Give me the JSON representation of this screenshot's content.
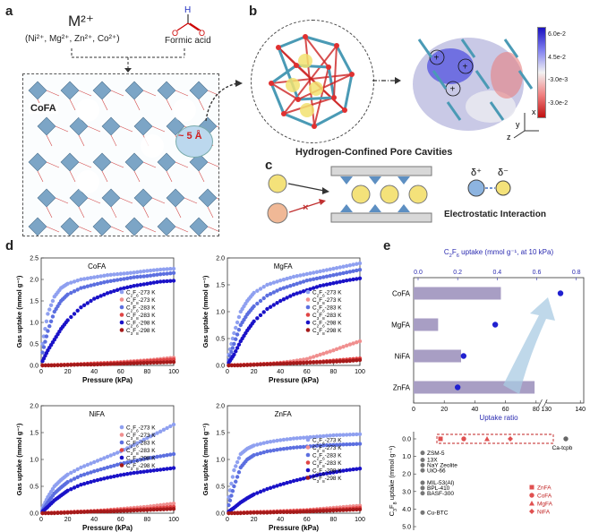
{
  "panels": {
    "a": "a",
    "b": "b",
    "c": "c",
    "d": "d",
    "e": "e"
  },
  "panel_a": {
    "metal_formula": "M²⁺",
    "metal_list": "(Ni²⁺, Mg²⁺, Zn²⁺, Co²⁺)",
    "acid_label": "Formic acid",
    "framework_label": "CoFA",
    "pore_size": "~ 5 Å"
  },
  "panel_b": {
    "title": "Hydrogen-Confined Pore Cavities",
    "colorbar_ticks": [
      "6.0e-2",
      "4.5e-2",
      "",
      "-3.0e-3",
      "-3.0e-2"
    ],
    "axes": {
      "x": "x",
      "y": "y",
      "z": "z"
    }
  },
  "panel_c": {
    "caption": "Electrostatic Interaction",
    "delta_plus": "δ⁺",
    "delta_minus": "δ⁻"
  },
  "isotherm_charts": [
    {
      "name": "CoFA",
      "legend": [
        "C2F6-273 K",
        "C3F8-273 K",
        "C2F6-283 K",
        "C3F8-283 K",
        "C2F6-298 K",
        "C3F8-298 K"
      ]
    },
    {
      "name": "MgFA",
      "legend": [
        "C2F6-273 K",
        "C3F8-273 K",
        "C2F6-283 K",
        "C3F8-283 K",
        "C2F6-298 K",
        "C3F8-298 K"
      ]
    },
    {
      "name": "NiFA",
      "legend": [
        "C2F6-273 K",
        "C3F8-273 K",
        "C2F6-283 K",
        "C3F8-283 K",
        "C2F6-298 K",
        "C3F8-298 K"
      ]
    },
    {
      "name": "ZnFA",
      "legend": [
        "C2F6-273 K",
        "C3F8-273 K",
        "C2F6-283 K",
        "C3F8-283 K",
        "C2F6-298 K",
        "C3F8-298 K"
      ]
    }
  ],
  "chart_data": [
    {
      "type": "scatter",
      "title": "CoFA",
      "xlabel": "Pressure (kPa)",
      "ylabel": "Gas uptake (mmol g⁻¹)",
      "xlim": [
        0,
        100
      ],
      "ylim": [
        0,
        2.5
      ],
      "xticks": [
        0,
        20,
        40,
        60,
        80,
        100
      ],
      "yticks": [
        0.0,
        0.5,
        1.0,
        1.5,
        2.0,
        2.5
      ],
      "series": [
        {
          "name": "C2F6-273 K",
          "color": "#8fa0f0",
          "x": [
            1,
            5,
            10,
            15,
            20,
            30,
            40,
            50,
            60,
            70,
            80,
            90,
            100
          ],
          "y": [
            0.5,
            1.2,
            1.6,
            1.8,
            1.9,
            2.0,
            2.05,
            2.1,
            2.13,
            2.16,
            2.2,
            2.23,
            2.25
          ]
        },
        {
          "name": "C3F8-273 K",
          "color": "#f08f8f",
          "x": [
            1,
            10,
            20,
            30,
            40,
            50,
            60,
            70,
            80,
            90,
            100
          ],
          "y": [
            0.0,
            0.01,
            0.02,
            0.03,
            0.05,
            0.06,
            0.08,
            0.1,
            0.12,
            0.15,
            0.18
          ]
        },
        {
          "name": "C2F6-283 K",
          "color": "#5c6fe0",
          "x": [
            1,
            5,
            10,
            15,
            20,
            30,
            40,
            50,
            60,
            70,
            80,
            90,
            100
          ],
          "y": [
            0.3,
            0.8,
            1.25,
            1.5,
            1.65,
            1.8,
            1.88,
            1.95,
            2.0,
            2.05,
            2.08,
            2.12,
            2.15
          ]
        },
        {
          "name": "C3F8-283 K",
          "color": "#e04545",
          "x": [
            1,
            10,
            20,
            30,
            40,
            50,
            60,
            70,
            80,
            90,
            100
          ],
          "y": [
            0.0,
            0.01,
            0.02,
            0.03,
            0.04,
            0.05,
            0.06,
            0.08,
            0.1,
            0.12,
            0.14
          ]
        },
        {
          "name": "C2F6-298 K",
          "color": "#1a12c8",
          "x": [
            1,
            5,
            10,
            15,
            20,
            30,
            40,
            50,
            60,
            70,
            80,
            90,
            100
          ],
          "y": [
            0.1,
            0.35,
            0.6,
            0.85,
            1.05,
            1.35,
            1.55,
            1.68,
            1.78,
            1.85,
            1.9,
            1.95,
            1.97
          ]
        },
        {
          "name": "C3F8-298 K",
          "color": "#a51a1a",
          "x": [
            1,
            10,
            20,
            30,
            40,
            50,
            60,
            70,
            80,
            90,
            100
          ],
          "y": [
            0.0,
            0.0,
            0.01,
            0.02,
            0.02,
            0.03,
            0.04,
            0.05,
            0.06,
            0.07,
            0.08
          ]
        }
      ]
    },
    {
      "type": "scatter",
      "title": "MgFA",
      "xlabel": "Pressure (kPa)",
      "ylabel": "Gas uptake (mmol g⁻¹)",
      "xlim": [
        0,
        100
      ],
      "ylim": [
        0,
        2.0
      ],
      "xticks": [
        0,
        20,
        40,
        60,
        80,
        100
      ],
      "yticks": [
        0.0,
        0.5,
        1.0,
        1.5,
        2.0
      ],
      "series": [
        {
          "name": "C2F6-273 K",
          "color": "#8fa0f0",
          "x": [
            1,
            5,
            10,
            15,
            20,
            30,
            40,
            50,
            60,
            70,
            80,
            90,
            100
          ],
          "y": [
            0.2,
            0.6,
            1.0,
            1.2,
            1.35,
            1.5,
            1.58,
            1.65,
            1.7,
            1.75,
            1.8,
            1.85,
            1.9
          ]
        },
        {
          "name": "C3F8-273 K",
          "color": "#f08f8f",
          "x": [
            1,
            10,
            20,
            30,
            40,
            50,
            60,
            70,
            80,
            90,
            100
          ],
          "y": [
            0.0,
            0.01,
            0.02,
            0.03,
            0.05,
            0.08,
            0.12,
            0.2,
            0.28,
            0.37,
            0.45
          ]
        },
        {
          "name": "C2F6-283 K",
          "color": "#5c6fe0",
          "x": [
            1,
            5,
            10,
            15,
            20,
            30,
            40,
            50,
            60,
            70,
            80,
            90,
            100
          ],
          "y": [
            0.1,
            0.4,
            0.75,
            0.95,
            1.1,
            1.3,
            1.42,
            1.5,
            1.58,
            1.63,
            1.68,
            1.73,
            1.78
          ]
        },
        {
          "name": "C3F8-283 K",
          "color": "#e04545",
          "x": [
            1,
            10,
            20,
            30,
            40,
            50,
            60,
            70,
            80,
            90,
            100
          ],
          "y": [
            0.0,
            0.01,
            0.02,
            0.03,
            0.04,
            0.05,
            0.06,
            0.07,
            0.09,
            0.11,
            0.13
          ]
        },
        {
          "name": "C2F6-298 K",
          "color": "#1a12c8",
          "x": [
            1,
            5,
            10,
            15,
            20,
            30,
            40,
            50,
            60,
            70,
            80,
            90,
            100
          ],
          "y": [
            0.05,
            0.2,
            0.45,
            0.65,
            0.82,
            1.05,
            1.2,
            1.32,
            1.4,
            1.48,
            1.53,
            1.58,
            1.62
          ]
        },
        {
          "name": "C3F8-298 K",
          "color": "#a51a1a",
          "x": [
            1,
            10,
            20,
            30,
            40,
            50,
            60,
            70,
            80,
            90,
            100
          ],
          "y": [
            0.0,
            0.0,
            0.01,
            0.02,
            0.03,
            0.04,
            0.05,
            0.06,
            0.07,
            0.08,
            0.1
          ]
        }
      ]
    },
    {
      "type": "scatter",
      "title": "NiFA",
      "xlabel": "Pressure (kPa)",
      "ylabel": "Gas uptake (mmol g⁻¹)",
      "xlim": [
        0,
        100
      ],
      "ylim": [
        0,
        2.0
      ],
      "xticks": [
        0,
        20,
        40,
        60,
        80,
        100
      ],
      "yticks": [
        0.0,
        0.5,
        1.0,
        1.5,
        2.0
      ],
      "series": [
        {
          "name": "C2F6-273 K",
          "color": "#8fa0f0",
          "x": [
            1,
            5,
            10,
            15,
            20,
            30,
            40,
            50,
            60,
            70,
            80,
            90,
            100
          ],
          "y": [
            0.1,
            0.3,
            0.5,
            0.62,
            0.72,
            0.85,
            0.95,
            1.05,
            1.15,
            1.27,
            1.4,
            1.52,
            1.65
          ]
        },
        {
          "name": "C3F8-273 K",
          "color": "#f08f8f",
          "x": [
            1,
            10,
            20,
            30,
            40,
            50,
            60,
            70,
            80,
            90,
            100
          ],
          "y": [
            0.0,
            0.01,
            0.02,
            0.03,
            0.04,
            0.06,
            0.08,
            0.1,
            0.12,
            0.15,
            0.18
          ]
        },
        {
          "name": "C2F6-283 K",
          "color": "#5c6fe0",
          "x": [
            1,
            5,
            10,
            15,
            20,
            30,
            40,
            50,
            60,
            70,
            80,
            90,
            100
          ],
          "y": [
            0.05,
            0.2,
            0.37,
            0.48,
            0.58,
            0.7,
            0.78,
            0.85,
            0.92,
            0.97,
            1.02,
            1.06,
            1.1
          ]
        },
        {
          "name": "C3F8-283 K",
          "color": "#e04545",
          "x": [
            1,
            10,
            20,
            30,
            40,
            50,
            60,
            70,
            80,
            90,
            100
          ],
          "y": [
            0.0,
            0.01,
            0.02,
            0.03,
            0.04,
            0.05,
            0.06,
            0.07,
            0.08,
            0.1,
            0.12
          ]
        },
        {
          "name": "C2F6-298 K",
          "color": "#1a12c8",
          "x": [
            1,
            5,
            10,
            15,
            20,
            30,
            40,
            50,
            60,
            70,
            80,
            90,
            100
          ],
          "y": [
            0.03,
            0.12,
            0.24,
            0.33,
            0.42,
            0.53,
            0.6,
            0.66,
            0.71,
            0.75,
            0.78,
            0.81,
            0.84
          ]
        },
        {
          "name": "C3F8-298 K",
          "color": "#a51a1a",
          "x": [
            1,
            10,
            20,
            30,
            40,
            50,
            60,
            70,
            80,
            90,
            100
          ],
          "y": [
            0.0,
            0.0,
            0.01,
            0.02,
            0.03,
            0.03,
            0.04,
            0.05,
            0.06,
            0.07,
            0.08
          ]
        }
      ]
    },
    {
      "type": "scatter",
      "title": "ZnFA",
      "xlabel": "Pressure (kPa)",
      "ylabel": "Gas uptake (mmol g⁻¹)",
      "xlim": [
        0,
        100
      ],
      "ylim": [
        0,
        2.0
      ],
      "xticks": [
        0,
        20,
        40,
        60,
        80,
        100
      ],
      "yticks": [
        0.0,
        0.5,
        1.0,
        1.5,
        2.0
      ],
      "series": [
        {
          "name": "C2F6-273 K",
          "color": "#8fa0f0",
          "x": [
            1,
            5,
            10,
            15,
            20,
            30,
            40,
            50,
            60,
            70,
            80,
            90,
            100
          ],
          "y": [
            0.3,
            0.8,
            1.1,
            1.2,
            1.26,
            1.32,
            1.36,
            1.39,
            1.41,
            1.43,
            1.45,
            1.46,
            1.47
          ]
        },
        {
          "name": "C3F8-273 K",
          "color": "#f08f8f",
          "x": [
            1,
            10,
            20,
            30,
            40,
            50,
            60,
            70,
            80,
            90,
            100
          ],
          "y": [
            0.0,
            0.01,
            0.02,
            0.03,
            0.04,
            0.05,
            0.06,
            0.08,
            0.1,
            0.12,
            0.14
          ]
        },
        {
          "name": "C2F6-283 K",
          "color": "#5c6fe0",
          "x": [
            1,
            5,
            10,
            15,
            20,
            30,
            40,
            50,
            60,
            70,
            80,
            90,
            100
          ],
          "y": [
            0.15,
            0.5,
            0.85,
            1.0,
            1.08,
            1.15,
            1.19,
            1.22,
            1.24,
            1.26,
            1.27,
            1.28,
            1.29
          ]
        },
        {
          "name": "C3F8-283 K",
          "color": "#e04545",
          "x": [
            1,
            10,
            20,
            30,
            40,
            50,
            60,
            70,
            80,
            90,
            100
          ],
          "y": [
            0.0,
            0.01,
            0.02,
            0.02,
            0.03,
            0.04,
            0.05,
            0.06,
            0.07,
            0.08,
            0.1
          ]
        },
        {
          "name": "C2F6-298 K",
          "color": "#1a12c8",
          "x": [
            1,
            5,
            10,
            15,
            20,
            30,
            40,
            50,
            60,
            70,
            80,
            90,
            100
          ],
          "y": [
            0.03,
            0.1,
            0.2,
            0.28,
            0.35,
            0.45,
            0.53,
            0.6,
            0.66,
            0.72,
            0.76,
            0.8,
            0.83
          ]
        },
        {
          "name": "C3F8-298 K",
          "color": "#a51a1a",
          "x": [
            1,
            10,
            20,
            30,
            40,
            50,
            60,
            70,
            80,
            90,
            100
          ],
          "y": [
            0.0,
            0.0,
            0.01,
            0.01,
            0.02,
            0.02,
            0.03,
            0.04,
            0.05,
            0.06,
            0.07
          ]
        }
      ]
    },
    {
      "type": "bar",
      "orientation": "horizontal",
      "title": "",
      "xlabel": "Uptake ratio",
      "top_axis_label": "C2F6 uptake (mmol g⁻¹, at 10 kPa)",
      "categories": [
        "CoFA",
        "MgFA",
        "NiFA",
        "ZnFA"
      ],
      "values": [
        57,
        16,
        31,
        79
      ],
      "xticks": [
        0,
        20,
        40,
        60,
        80,
        130,
        140
      ],
      "xlim_bottom": [
        0,
        140
      ],
      "axis_break_between": [
        80,
        130
      ],
      "top_ticks": [
        0.0,
        0.2,
        0.4,
        0.6,
        0.8
      ],
      "top_xlim": [
        0,
        0.8
      ],
      "top_series": {
        "name": "C2F6 uptake (mmol g⁻¹, at 10 kPa)",
        "values": [
          0.72,
          0.39,
          0.23,
          0.2
        ],
        "color": "#2020d0"
      },
      "bar_color": "#a89ec4"
    },
    {
      "type": "scatter",
      "title": "",
      "ylabel": "C3F8 uptake (mmol g⁻¹)",
      "ylim": [
        0,
        5.0
      ],
      "yticks": [
        0.0,
        1.0,
        2.0,
        3.0,
        4.0,
        5.0
      ],
      "this_work": [
        {
          "name": "ZnFA",
          "marker": "square"
        },
        {
          "name": "CoFA",
          "marker": "circle"
        },
        {
          "name": "MgFA",
          "marker": "triangle"
        },
        {
          "name": "NiFA",
          "marker": "diamond"
        }
      ],
      "this_work_points": [
        {
          "ratio": 35,
          "y": 0.0
        },
        {
          "ratio": 55,
          "y": 0.0
        },
        {
          "ratio": 75,
          "y": 0.0
        },
        {
          "ratio": 95,
          "y": 0.0
        }
      ],
      "highlight_label": "Ca-tcpb",
      "references": [
        "ZSM-5",
        "13X",
        "NaY Zeolite",
        "UiO-66",
        "MIL-53(Al)",
        "BPL-410",
        "BASF-300",
        "Cu-BTC"
      ],
      "reference_y": [
        0.8,
        1.2,
        1.5,
        1.8,
        2.5,
        2.8,
        3.1,
        4.2
      ]
    }
  ]
}
